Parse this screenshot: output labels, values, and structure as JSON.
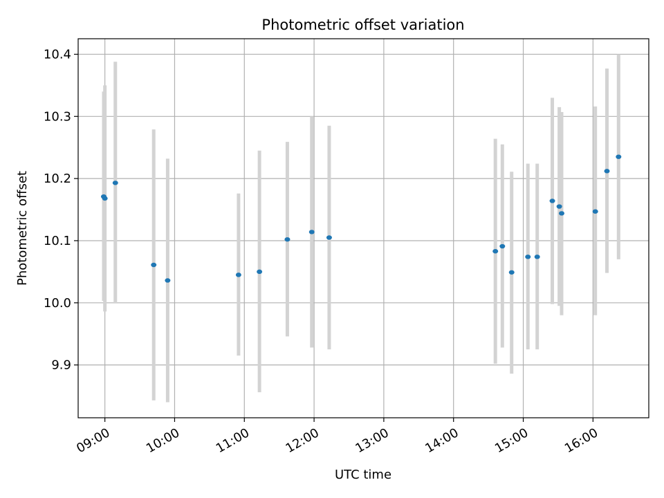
{
  "chart_data": {
    "type": "scatter",
    "title": "Photometric offset variation",
    "xlabel": "UTC time",
    "ylabel": "Photometric offset",
    "x_ticks": [
      "09:00",
      "10:00",
      "11:00",
      "12:00",
      "13:00",
      "14:00",
      "15:00",
      "16:00"
    ],
    "y_ticks": [
      "9.9",
      "10.0",
      "10.1",
      "10.2",
      "10.3",
      "10.4"
    ],
    "xlim": [
      "08:37",
      "16:48"
    ],
    "ylim": [
      9.815,
      10.425
    ],
    "grid": true,
    "colors": {
      "point": "#1f77b4",
      "errorbar": "#d3d3d3",
      "grid": "#b0b0b0"
    },
    "points": [
      {
        "x": "08:59",
        "y": 10.171,
        "ylow": 10.003,
        "yhigh": 10.34
      },
      {
        "x": "09:00",
        "y": 10.168,
        "ylow": 9.986,
        "yhigh": 10.35
      },
      {
        "x": "09:09",
        "y": 10.193,
        "ylow": 9.999,
        "yhigh": 10.388
      },
      {
        "x": "09:42",
        "y": 10.061,
        "ylow": 9.843,
        "yhigh": 10.279
      },
      {
        "x": "09:54",
        "y": 10.036,
        "ylow": 9.84,
        "yhigh": 10.232
      },
      {
        "x": "10:55",
        "y": 10.045,
        "ylow": 9.915,
        "yhigh": 10.176
      },
      {
        "x": "11:13",
        "y": 10.05,
        "ylow": 9.856,
        "yhigh": 10.245
      },
      {
        "x": "11:37",
        "y": 10.102,
        "ylow": 9.946,
        "yhigh": 10.259
      },
      {
        "x": "11:58",
        "y": 10.114,
        "ylow": 9.928,
        "yhigh": 10.3
      },
      {
        "x": "12:13",
        "y": 10.105,
        "ylow": 9.925,
        "yhigh": 10.285
      },
      {
        "x": "14:36",
        "y": 10.083,
        "ylow": 9.902,
        "yhigh": 10.264
      },
      {
        "x": "14:42",
        "y": 10.091,
        "ylow": 9.928,
        "yhigh": 10.255
      },
      {
        "x": "14:50",
        "y": 10.049,
        "ylow": 9.886,
        "yhigh": 10.211
      },
      {
        "x": "15:04",
        "y": 10.074,
        "ylow": 9.925,
        "yhigh": 10.224
      },
      {
        "x": "15:12",
        "y": 10.074,
        "ylow": 9.925,
        "yhigh": 10.224
      },
      {
        "x": "15:25",
        "y": 10.164,
        "ylow": 9.998,
        "yhigh": 10.33
      },
      {
        "x": "15:31",
        "y": 10.155,
        "ylow": 9.995,
        "yhigh": 10.315
      },
      {
        "x": "15:33",
        "y": 10.144,
        "ylow": 9.98,
        "yhigh": 10.307
      },
      {
        "x": "16:02",
        "y": 10.147,
        "ylow": 9.98,
        "yhigh": 10.316
      },
      {
        "x": "16:12",
        "y": 10.212,
        "ylow": 10.048,
        "yhigh": 10.377
      },
      {
        "x": "16:22",
        "y": 10.235,
        "ylow": 10.07,
        "yhigh": 10.4
      }
    ]
  }
}
